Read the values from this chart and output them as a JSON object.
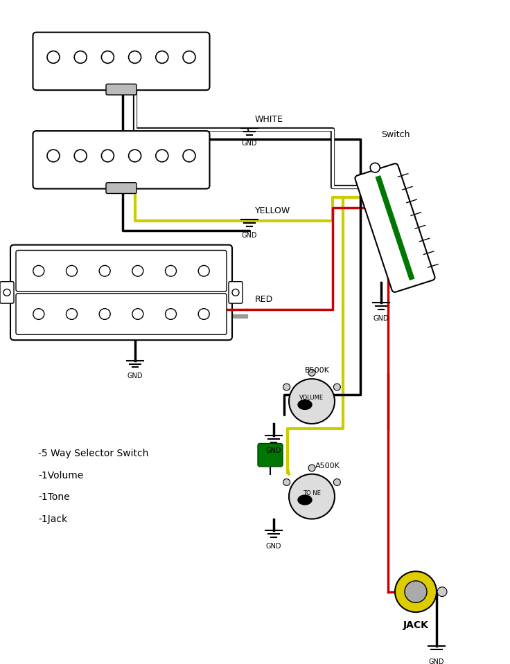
{
  "bg_color": "#ffffff",
  "figsize": [
    7.36,
    9.59
  ],
  "dpi": 100,
  "info_text": [
    "-5 Way Selector Switch",
    "-1Volume",
    "-1Tone",
    "-1Jack"
  ]
}
